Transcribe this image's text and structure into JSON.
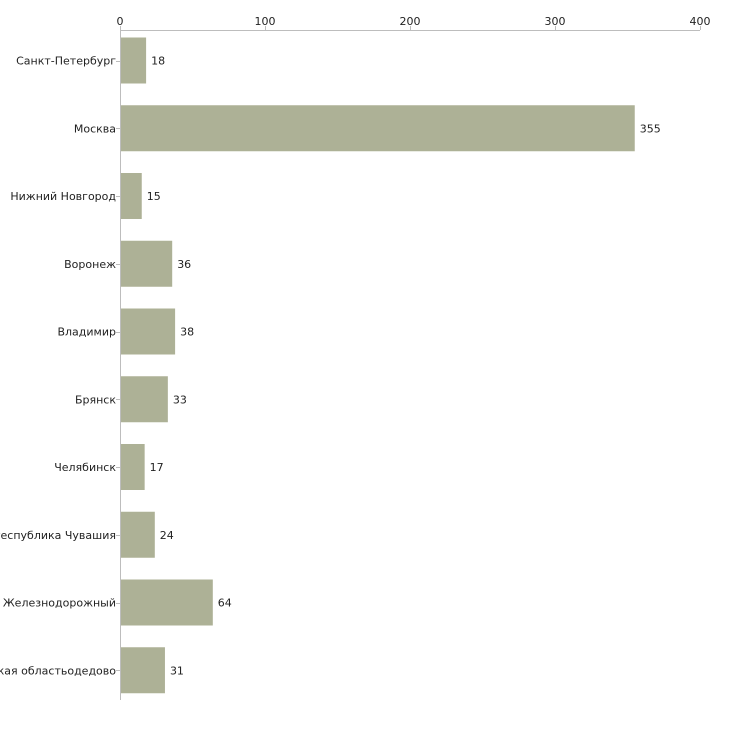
{
  "colors": {
    "bar": "#adb196",
    "axis": "#bdbdbd",
    "text": "#222222",
    "background": "#ffffff"
  },
  "chart_data": {
    "type": "bar",
    "orientation": "horizontal",
    "title": "",
    "xlabel": "",
    "ylabel": "",
    "xlim": [
      0,
      400
    ],
    "x_ticks": [
      0,
      100,
      200,
      300,
      400
    ],
    "grid": false,
    "legend": "none",
    "categories": [
      "Санкт-Петербург",
      "Москва",
      "Нижний Новгород",
      "Воронеж",
      "Владимир",
      "Брянск",
      "Челябинск",
      "Республика Чувашия",
      "Московская область Железнодорожный",
      "Московская областьодедово"
    ],
    "values": [
      18,
      355,
      15,
      36,
      38,
      33,
      17,
      24,
      64,
      31
    ]
  }
}
